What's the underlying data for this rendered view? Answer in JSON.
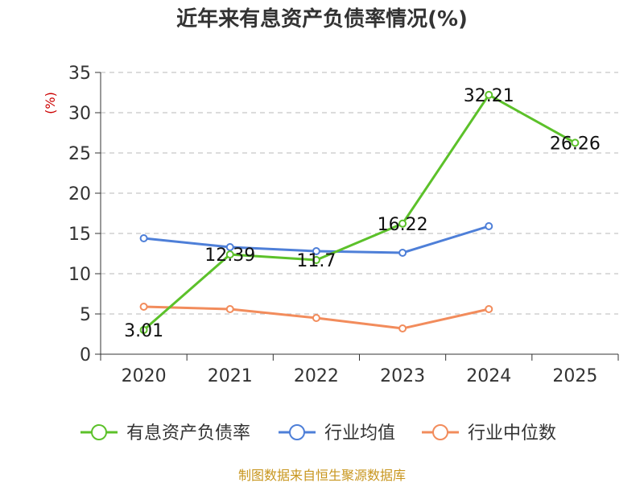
{
  "chart_data": {
    "type": "line",
    "title": "近年来有息资产负债率情况(%)",
    "unit_label": "(%)",
    "categories": [
      "2020",
      "2021",
      "2022",
      "2023",
      "2024",
      "2025"
    ],
    "ylim": [
      0,
      35
    ],
    "yticks": [
      "0",
      "5",
      "10",
      "15",
      "20",
      "25",
      "30",
      "35"
    ],
    "grid": true,
    "legend_position": "bottom",
    "series": [
      {
        "name": "有息资产负债率",
        "color": "#5cc12a",
        "values": [
          3.01,
          12.39,
          11.7,
          16.22,
          32.21,
          26.26
        ],
        "labels": [
          "3.01",
          "12.39",
          "11.7",
          "16.22",
          "32.21",
          "26.26"
        ]
      },
      {
        "name": "行业均值",
        "color": "#4e7fd8",
        "values": [
          14.4,
          13.3,
          12.8,
          12.6,
          15.9,
          null
        ]
      },
      {
        "name": "行业中位数",
        "color": "#f28c5c",
        "values": [
          5.9,
          5.6,
          4.5,
          3.2,
          5.6,
          null
        ]
      }
    ],
    "source": "制图数据来自恒生聚源数据库"
  }
}
